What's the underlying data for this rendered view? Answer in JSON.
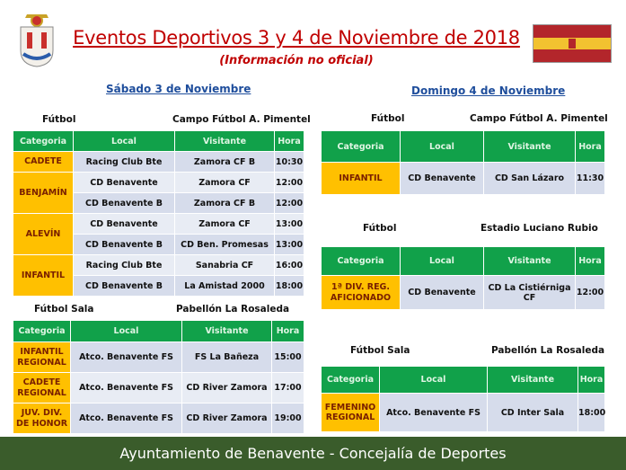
{
  "title": "Eventos Deportivos 3 y 4 de Noviembre de 2018",
  "subtitle": "(Información no oficial)",
  "footer": "Ayuntamiento de Benavente - Concejalía de Deportes",
  "colors": {
    "header_green": "#11a14a",
    "category_orange": "#ffc000",
    "title_red": "#c00000",
    "day_blue": "#1f4e9c",
    "footer_green": "#3a5c2b"
  },
  "icons": {
    "logo": "coat-of-arms-icon",
    "flag": "flag-icon"
  },
  "saturday": {
    "label": "Sábado 3 de Noviembre",
    "sections": [
      {
        "sport": "Fútbol",
        "venue": "Campo Fútbol A. Pimentel",
        "headers": [
          "Categoria",
          "Local",
          "Visitante",
          "Hora"
        ],
        "rows": [
          {
            "category": "CADETE",
            "span": 1,
            "local": "Racing Club Bte",
            "visitor": "Zamora CF B",
            "time": "10:30"
          },
          {
            "category": "BENJAMÍN",
            "span": 2,
            "local": "CD Benavente",
            "visitor": "Zamora CF",
            "time": "12:00"
          },
          {
            "local": "CD Benavente B",
            "visitor": "Zamora CF B",
            "time": "12:00"
          },
          {
            "category": "ALEVÍN",
            "span": 2,
            "local": "CD Benavente",
            "visitor": "Zamora CF",
            "time": "13:00"
          },
          {
            "local": "CD Benavente B",
            "visitor": "CD Ben. Promesas",
            "time": "13:00"
          },
          {
            "category": "INFANTIL",
            "span": 2,
            "local": "Racing Club Bte",
            "visitor": "Sanabria CF",
            "time": "16:00"
          },
          {
            "local": "CD Benavente B",
            "visitor": "La Amistad 2000",
            "time": "18:00"
          }
        ]
      },
      {
        "sport": "Fútbol Sala",
        "venue": "Pabellón La Rosaleda",
        "headers": [
          "Categoria",
          "Local",
          "Visitante",
          "Hora"
        ],
        "rows": [
          {
            "category": "INFANTIL REGIONAL",
            "span": 1,
            "local": "Atco. Benavente FS",
            "visitor": "FS La Bañeza",
            "time": "15:00"
          },
          {
            "category": "CADETE REGIONAL",
            "span": 1,
            "local": "Atco. Benavente FS",
            "visitor": "CD River Zamora",
            "time": "17:00"
          },
          {
            "category": "JUV. DIV. DE HONOR",
            "span": 1,
            "local": "Atco. Benavente FS",
            "visitor": "CD River Zamora",
            "time": "19:00"
          }
        ]
      }
    ]
  },
  "sunday": {
    "label": "Domingo 4 de Noviembre",
    "sections": [
      {
        "sport": "Fútbol",
        "venue": "Campo Fútbol A. Pimentel",
        "headers": [
          "Categoria",
          "Local",
          "Visitante",
          "Hora"
        ],
        "rows": [
          {
            "category": "INFANTIL",
            "span": 1,
            "local": "CD Benavente",
            "visitor": "CD San Lázaro",
            "time": "11:30"
          }
        ]
      },
      {
        "sport": "Fútbol",
        "venue": "Estadio Luciano Rubio",
        "headers": [
          "Categoria",
          "Local",
          "Visitante",
          "Hora"
        ],
        "rows": [
          {
            "category": "1ª DIV. REG. AFICIONADO",
            "span": 1,
            "local": "CD Benavente",
            "visitor": "CD La Cistiérniga CF",
            "time": "12:00"
          }
        ]
      },
      {
        "sport": "Fútbol Sala",
        "venue": "Pabellón La Rosaleda",
        "headers": [
          "Categoria",
          "Local",
          "Visitante",
          "Hora"
        ],
        "rows": [
          {
            "category": "FEMENINO REGIONAL",
            "span": 1,
            "local": "Atco. Benavente FS",
            "visitor": "CD Inter Sala",
            "time": "18:00"
          }
        ]
      }
    ]
  }
}
